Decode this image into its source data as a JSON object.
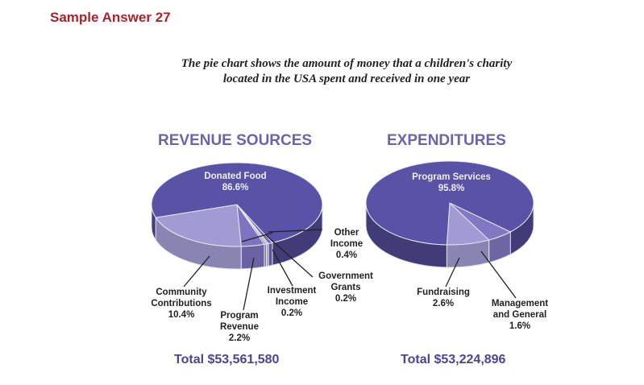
{
  "header": "Sample Answer 27",
  "caption": [
    "The pie chart shows the amount of money that a children's charity",
    "located in the USA spent and received in one year"
  ],
  "chart_data": [
    {
      "type": "pie",
      "title": "REVENUE SOURCES",
      "total_label": "Total $53,561,580",
      "slices": [
        {
          "name": "Donated Food",
          "value": 86.6,
          "label": "86.6%",
          "color": "#5a52a6"
        },
        {
          "name": "Community Contributions",
          "value": 10.4,
          "label": "10.4%",
          "color": "#a29bd3"
        },
        {
          "name": "Program Revenue",
          "value": 2.2,
          "label": "2.2%",
          "color": "#7c74c0"
        },
        {
          "name": "Investment Income",
          "value": 0.2,
          "label": "0.2%",
          "color": "#8c85c8"
        },
        {
          "name": "Government Grants",
          "value": 0.2,
          "label": "0.2%",
          "color": "#b3addc"
        },
        {
          "name": "Other Income",
          "value": 0.4,
          "label": "0.4%",
          "color": "#6d66b4"
        }
      ]
    },
    {
      "type": "pie",
      "title": "EXPENDITURES",
      "total_label": "Total $53,224,896",
      "slices": [
        {
          "name": "Program Services",
          "value": 95.8,
          "label": "95.8%",
          "color": "#5a52a6"
        },
        {
          "name": "Fundraising",
          "value": 2.6,
          "label": "2.6%",
          "color": "#a29bd3"
        },
        {
          "name": "Management and General",
          "value": 1.6,
          "label": "1.6%",
          "color": "#8078c2"
        }
      ]
    }
  ],
  "labels": {
    "donated": "Donated Food",
    "community1": "Community",
    "community2": "Contributions",
    "program1": "Program",
    "program2": "Revenue",
    "invest1": "Investment",
    "invest2": "Income",
    "gov1": "Government",
    "gov2": "Grants",
    "other1": "Other",
    "other2": "Income",
    "progserv": "Program Services",
    "fund": "Fundraising",
    "mgmt1": "Management",
    "mgmt2": "and General"
  }
}
